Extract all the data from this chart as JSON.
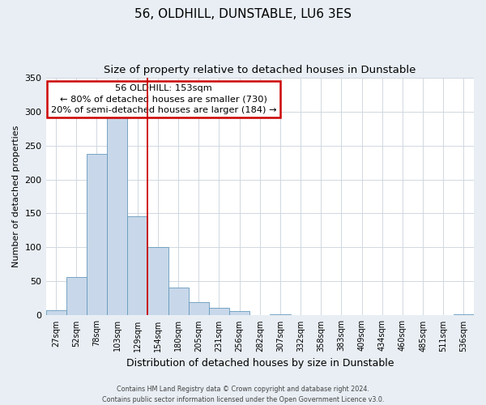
{
  "title": "56, OLDHILL, DUNSTABLE, LU6 3ES",
  "subtitle": "Size of property relative to detached houses in Dunstable",
  "xlabel": "Distribution of detached houses by size in Dunstable",
  "ylabel": "Number of detached properties",
  "bar_labels": [
    "27sqm",
    "52sqm",
    "78sqm",
    "103sqm",
    "129sqm",
    "154sqm",
    "180sqm",
    "205sqm",
    "231sqm",
    "256sqm",
    "282sqm",
    "307sqm",
    "332sqm",
    "358sqm",
    "383sqm",
    "409sqm",
    "434sqm",
    "460sqm",
    "485sqm",
    "511sqm",
    "536sqm"
  ],
  "bar_values": [
    8,
    57,
    238,
    291,
    146,
    101,
    41,
    20,
    11,
    6,
    0,
    2,
    1,
    1,
    0,
    0,
    0,
    0,
    0,
    0,
    2
  ],
  "bar_color": "#c8d8ea",
  "bar_edge_color": "#6699bb",
  "ylim": [
    0,
    350
  ],
  "yticks": [
    0,
    50,
    100,
    150,
    200,
    250,
    300,
    350
  ],
  "vline_x": 4.5,
  "vline_color": "#cc0000",
  "annotation_title": "56 OLDHILL: 153sqm",
  "annotation_line1": "← 80% of detached houses are smaller (730)",
  "annotation_line2": "20% of semi-detached houses are larger (184) →",
  "annotation_box_color": "#cc0000",
  "footer_line1": "Contains HM Land Registry data © Crown copyright and database right 2024.",
  "footer_line2": "Contains public sector information licensed under the Open Government Licence v3.0.",
  "background_color": "#e8eef4",
  "plot_bg_color": "#ffffff",
  "grid_color": "#d0d8e0",
  "title_fontsize": 11,
  "subtitle_fontsize": 9.5,
  "ylabel_fontsize": 8,
  "xlabel_fontsize": 9
}
